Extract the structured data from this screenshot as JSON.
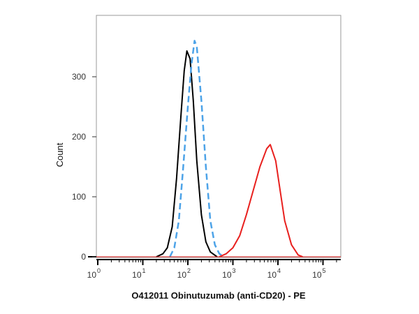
{
  "chart_data": {
    "type": "line",
    "title": "",
    "xlabel": "O412011 Obinutuzumab (anti-CD20) - PE",
    "ylabel": "Count",
    "xscale": "log",
    "xlim": [
      0.6,
      250000
    ],
    "ylim": [
      0,
      400
    ],
    "grid": false,
    "x_ticks": [
      {
        "base": "10",
        "exp": "0",
        "value": 1
      },
      {
        "base": "10",
        "exp": "1",
        "value": 10
      },
      {
        "base": "10",
        "exp": "2",
        "value": 100
      },
      {
        "base": "10",
        "exp": "3",
        "value": 1000
      },
      {
        "base": "10",
        "exp": "4",
        "value": 10000
      },
      {
        "base": "10",
        "exp": "5",
        "value": 100000
      }
    ],
    "y_ticks": [
      "0",
      "100",
      "200",
      "300"
    ],
    "series": [
      {
        "color": "#000000",
        "style": "solid",
        "x": [
          20,
          28,
          35,
          45,
          56,
          71,
          83,
          95,
          112,
          132,
          158,
          200,
          251,
          316,
          447
        ],
        "y": [
          0,
          5,
          15,
          50,
          130,
          240,
          310,
          343,
          330,
          260,
          160,
          70,
          25,
          8,
          0
        ]
      },
      {
        "color": "#4da3e8",
        "style": "dashed",
        "x": [
          40,
          50,
          63,
          79,
          100,
          120,
          141,
          158,
          200,
          251,
          316,
          398,
          501,
          631
        ],
        "y": [
          0,
          15,
          60,
          150,
          250,
          320,
          360,
          350,
          260,
          150,
          60,
          20,
          5,
          0
        ]
      },
      {
        "color": "#e8201e",
        "style": "solid",
        "x": [
          500,
          708,
          1000,
          1413,
          1995,
          2818,
          3981,
          5623,
          6761,
          8913,
          11220,
          14125,
          19953,
          28184,
          35481
        ],
        "y": [
          0,
          5,
          15,
          35,
          70,
          110,
          150,
          180,
          187,
          160,
          110,
          60,
          20,
          3,
          0
        ]
      }
    ]
  }
}
